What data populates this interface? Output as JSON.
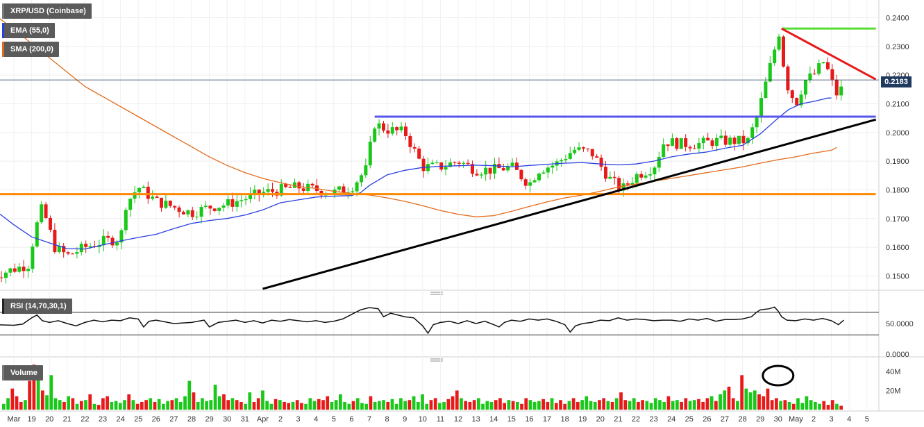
{
  "panels": {
    "price": {
      "title": "XRP/USD (Coinbase)",
      "indicators": [
        {
          "label": "EMA (55,0)",
          "color": "#2a3fe0"
        },
        {
          "label": "SMA (200,0)",
          "color": "#e36b1a"
        }
      ]
    },
    "rsi": {
      "title": "RSI (14,70,30,1)"
    },
    "volume": {
      "title": "Volume"
    }
  },
  "last_price_label": "0.2183",
  "colors": {
    "up": "#19c819",
    "down": "#e81919",
    "ema": "#2a3fe0",
    "sma": "#e36b1a",
    "trend_black": "#000000",
    "resistance_blue": "#5555ee",
    "support_orange": "#ff8800",
    "trend_red": "#e81919",
    "high_green": "#55dd33"
  },
  "chart_data": {
    "type": "candlestick",
    "price_axis": {
      "ticks": [
        "0.2400",
        "0.2300",
        "0.2200",
        "0.2100",
        "0.2000",
        "0.1900",
        "0.1800",
        "0.1700",
        "0.1600",
        "0.1500"
      ],
      "ylim": [
        0.1455,
        0.2435
      ]
    },
    "rsi_axis": {
      "ticks": [
        "50.0000"
      ],
      "levels": [
        70,
        30
      ]
    },
    "zero_label": "0.0000",
    "volume_axis": {
      "ticks": [
        "40M",
        "20M"
      ]
    },
    "x_ticks": [
      "Mar",
      "19",
      "20",
      "21",
      "22",
      "23",
      "24",
      "25",
      "26",
      "27",
      "28",
      "29",
      "30",
      "31",
      "Apr",
      "2",
      "3",
      "4",
      "5",
      "6",
      "7",
      "8",
      "9",
      "10",
      "11",
      "12",
      "13",
      "14",
      "15",
      "16",
      "17",
      "18",
      "19",
      "20",
      "21",
      "22",
      "23",
      "24",
      "25",
      "26",
      "27",
      "28",
      "29",
      "30",
      "May",
      "2",
      "3",
      "4",
      "5"
    ],
    "last_price": 0.2183,
    "ema_55": [
      [
        -1.2,
        0.1735
      ],
      [
        0.0,
        0.1678
      ],
      [
        1.0,
        0.1636
      ],
      [
        2.0,
        0.1615
      ],
      [
        3.0,
        0.1595
      ],
      [
        4.0,
        0.1594
      ],
      [
        5.0,
        0.1608
      ],
      [
        6.0,
        0.1622
      ],
      [
        7.0,
        0.1634
      ],
      [
        8.0,
        0.1645
      ],
      [
        9.0,
        0.1665
      ],
      [
        10.0,
        0.1683
      ],
      [
        11.0,
        0.1693
      ],
      [
        12.0,
        0.17
      ],
      [
        13.0,
        0.1712
      ],
      [
        14.0,
        0.173
      ],
      [
        15.0,
        0.1755
      ],
      [
        16.0,
        0.1765
      ],
      [
        17.0,
        0.1775
      ],
      [
        18.0,
        0.1778
      ],
      [
        19.0,
        0.178
      ],
      [
        19.5,
        0.179
      ],
      [
        20.0,
        0.1815
      ],
      [
        21.0,
        0.1852
      ],
      [
        22.0,
        0.1868
      ],
      [
        23.0,
        0.1878
      ],
      [
        24.0,
        0.1882
      ],
      [
        25.0,
        0.1884
      ],
      [
        26.0,
        0.1886
      ],
      [
        27.0,
        0.1884
      ],
      [
        28.0,
        0.188
      ],
      [
        29.0,
        0.1885
      ],
      [
        30.0,
        0.1889
      ],
      [
        31.0,
        0.1893
      ],
      [
        32.0,
        0.1895
      ],
      [
        33.0,
        0.189
      ],
      [
        34.0,
        0.1887
      ],
      [
        35.0,
        0.189
      ],
      [
        36.0,
        0.19
      ],
      [
        37.0,
        0.1915
      ],
      [
        38.0,
        0.1925
      ],
      [
        39.0,
        0.1932
      ],
      [
        40.0,
        0.1945
      ],
      [
        41.0,
        0.1955
      ],
      [
        42.0,
        0.1995
      ],
      [
        43.0,
        0.205
      ],
      [
        43.6,
        0.208
      ],
      [
        44.3,
        0.21
      ],
      [
        45.0,
        0.2108
      ],
      [
        45.8,
        0.212
      ],
      [
        46.0,
        0.212
      ]
    ],
    "sma_200": [
      [
        -1.2,
        0.2415
      ],
      [
        0.0,
        0.236
      ],
      [
        1.0,
        0.231
      ],
      [
        2.0,
        0.226
      ],
      [
        3.0,
        0.221
      ],
      [
        4.0,
        0.216
      ],
      [
        5.0,
        0.2125
      ],
      [
        6.0,
        0.209
      ],
      [
        7.0,
        0.2055
      ],
      [
        8.0,
        0.202
      ],
      [
        9.0,
        0.1985
      ],
      [
        10.0,
        0.195
      ],
      [
        11.0,
        0.1915
      ],
      [
        12.0,
        0.1885
      ],
      [
        13.0,
        0.186
      ],
      [
        14.0,
        0.184
      ],
      [
        15.0,
        0.1825
      ],
      [
        16.0,
        0.1812
      ],
      [
        17.0,
        0.1805
      ],
      [
        18.0,
        0.1795
      ],
      [
        19.0,
        0.1787
      ],
      [
        20.0,
        0.1782
      ],
      [
        21.0,
        0.1772
      ],
      [
        22.0,
        0.176
      ],
      [
        23.0,
        0.1745
      ],
      [
        24.0,
        0.1728
      ],
      [
        25.0,
        0.1715
      ],
      [
        26.0,
        0.1706
      ],
      [
        27.0,
        0.171
      ],
      [
        28.0,
        0.1725
      ],
      [
        29.0,
        0.1742
      ],
      [
        30.0,
        0.1758
      ],
      [
        31.0,
        0.1772
      ],
      [
        32.0,
        0.1782
      ],
      [
        33.0,
        0.1795
      ],
      [
        34.0,
        0.181
      ],
      [
        35.0,
        0.182
      ],
      [
        36.0,
        0.183
      ],
      [
        37.0,
        0.184
      ],
      [
        38.0,
        0.185
      ],
      [
        39.0,
        0.186
      ],
      [
        40.0,
        0.187
      ],
      [
        41.0,
        0.188
      ],
      [
        42.0,
        0.1893
      ],
      [
        43.0,
        0.1905
      ],
      [
        44.0,
        0.1915
      ],
      [
        45.0,
        0.1928
      ],
      [
        46.0,
        0.1938
      ],
      [
        46.3,
        0.1948
      ]
    ],
    "rsi": [
      [
        -1.2,
        48
      ],
      [
        0.0,
        47
      ],
      [
        0.5,
        49
      ],
      [
        1.0,
        60
      ],
      [
        1.3,
        65
      ],
      [
        1.6,
        55
      ],
      [
        2.0,
        52
      ],
      [
        2.5,
        55
      ],
      [
        3.0,
        50
      ],
      [
        3.5,
        46
      ],
      [
        4.0,
        52
      ],
      [
        4.5,
        56
      ],
      [
        5.0,
        53
      ],
      [
        5.5,
        56
      ],
      [
        6.0,
        55
      ],
      [
        6.5,
        60
      ],
      [
        7.0,
        58
      ],
      [
        7.3,
        44
      ],
      [
        7.6,
        54
      ],
      [
        8.0,
        56
      ],
      [
        9.0,
        50
      ],
      [
        10.0,
        52
      ],
      [
        10.7,
        56
      ],
      [
        11.0,
        44
      ],
      [
        11.5,
        52
      ],
      [
        12.0,
        54
      ],
      [
        12.5,
        56
      ],
      [
        13.0,
        52
      ],
      [
        13.5,
        55
      ],
      [
        14.0,
        51
      ],
      [
        14.5,
        56
      ],
      [
        15.0,
        54
      ],
      [
        15.5,
        57
      ],
      [
        16.0,
        55
      ],
      [
        16.5,
        53
      ],
      [
        17.0,
        55
      ],
      [
        17.5,
        52
      ],
      [
        18.0,
        54
      ],
      [
        18.5,
        58
      ],
      [
        19.0,
        66
      ],
      [
        19.5,
        74
      ],
      [
        20.0,
        78
      ],
      [
        20.5,
        76
      ],
      [
        20.8,
        62
      ],
      [
        21.2,
        68
      ],
      [
        22.0,
        62
      ],
      [
        22.5,
        60
      ],
      [
        23.0,
        46
      ],
      [
        23.3,
        33
      ],
      [
        23.6,
        48
      ],
      [
        24.0,
        52
      ],
      [
        24.5,
        54
      ],
      [
        25.0,
        50
      ],
      [
        25.5,
        55
      ],
      [
        26.0,
        50
      ],
      [
        26.5,
        54
      ],
      [
        27.0,
        48
      ],
      [
        27.3,
        44
      ],
      [
        27.6,
        52
      ],
      [
        28.0,
        56
      ],
      [
        28.5,
        54
      ],
      [
        29.0,
        58
      ],
      [
        29.5,
        56
      ],
      [
        30.0,
        58
      ],
      [
        30.5,
        54
      ],
      [
        31.0,
        48
      ],
      [
        31.3,
        35
      ],
      [
        31.6,
        46
      ],
      [
        32.0,
        50
      ],
      [
        32.5,
        52
      ],
      [
        33.0,
        56
      ],
      [
        33.5,
        55
      ],
      [
        34.0,
        60
      ],
      [
        34.5,
        56
      ],
      [
        35.0,
        58
      ],
      [
        35.5,
        57
      ],
      [
        36.0,
        55
      ],
      [
        36.5,
        56
      ],
      [
        37.0,
        56
      ],
      [
        37.5,
        54
      ],
      [
        38.0,
        58
      ],
      [
        38.5,
        56
      ],
      [
        39.0,
        59
      ],
      [
        39.5,
        54
      ],
      [
        40.0,
        57
      ],
      [
        40.5,
        57
      ],
      [
        41.0,
        58
      ],
      [
        41.5,
        62
      ],
      [
        41.8,
        70
      ],
      [
        42.0,
        74
      ],
      [
        42.5,
        76
      ],
      [
        42.8,
        79
      ],
      [
        43.0,
        72
      ],
      [
        43.2,
        62
      ],
      [
        43.5,
        56
      ],
      [
        44.0,
        55
      ],
      [
        44.5,
        58
      ],
      [
        45.0,
        56
      ],
      [
        45.5,
        59
      ],
      [
        46.0,
        55
      ],
      [
        46.4,
        48
      ],
      [
        46.7,
        56
      ]
    ],
    "volume_M": [
      6,
      12,
      22,
      14,
      8,
      10,
      30,
      47,
      38,
      20,
      15,
      36,
      12,
      10,
      8,
      14,
      12,
      6,
      9,
      10,
      16,
      6,
      5,
      12,
      14,
      8,
      9,
      7,
      10,
      16,
      10,
      6,
      8,
      10,
      12,
      8,
      11,
      6,
      9,
      10,
      12,
      8,
      14,
      30,
      18,
      8,
      12,
      9,
      10,
      26,
      14,
      16,
      10,
      12,
      10,
      8,
      6,
      18,
      8,
      12,
      20,
      9,
      6,
      11,
      10,
      8,
      7,
      8,
      10,
      7,
      6,
      12,
      9,
      11,
      10,
      14,
      8,
      10,
      16,
      8,
      6,
      9,
      12,
      7,
      6,
      14,
      8,
      9,
      10,
      8,
      11,
      6,
      12,
      9,
      10,
      14,
      8,
      16,
      6,
      10,
      12,
      7,
      8,
      11,
      14,
      20,
      12,
      9,
      8,
      10,
      12,
      6,
      9,
      8,
      10,
      12,
      7,
      10,
      9,
      8,
      6,
      12,
      10,
      8,
      9,
      11,
      8,
      12,
      7,
      10,
      6,
      9,
      12,
      8,
      10,
      14,
      9,
      8,
      10,
      12,
      9,
      8,
      12,
      18,
      10,
      9,
      12,
      8,
      10,
      9,
      7,
      12,
      10,
      8,
      14,
      9,
      10,
      8,
      12,
      9,
      10,
      11,
      8,
      12,
      14,
      9,
      16,
      20,
      24,
      12,
      9,
      36,
      22,
      18,
      20,
      16,
      14,
      22,
      10,
      12,
      9,
      10,
      8,
      6,
      12,
      7,
      14,
      10,
      8,
      6,
      9,
      5,
      10,
      6,
      4
    ],
    "annotations": {
      "resistance_blue": {
        "value": 0.2055,
        "x_from": 20.3,
        "x_to": 48.5
      },
      "support_orange": {
        "value": 0.1785,
        "x_from": -1.2,
        "x_to": 48.5
      },
      "high_green": {
        "value": 0.2362,
        "x_from": 43.2,
        "x_to": 48.5
      },
      "trend_black": {
        "from": [
          14.0,
          0.1455
        ],
        "to": [
          48.5,
          0.2045
        ]
      },
      "trend_red": {
        "from": [
          43.2,
          0.2362
        ],
        "to": [
          48.5,
          0.2185
        ]
      },
      "volume_circle_x": 43.0
    }
  }
}
